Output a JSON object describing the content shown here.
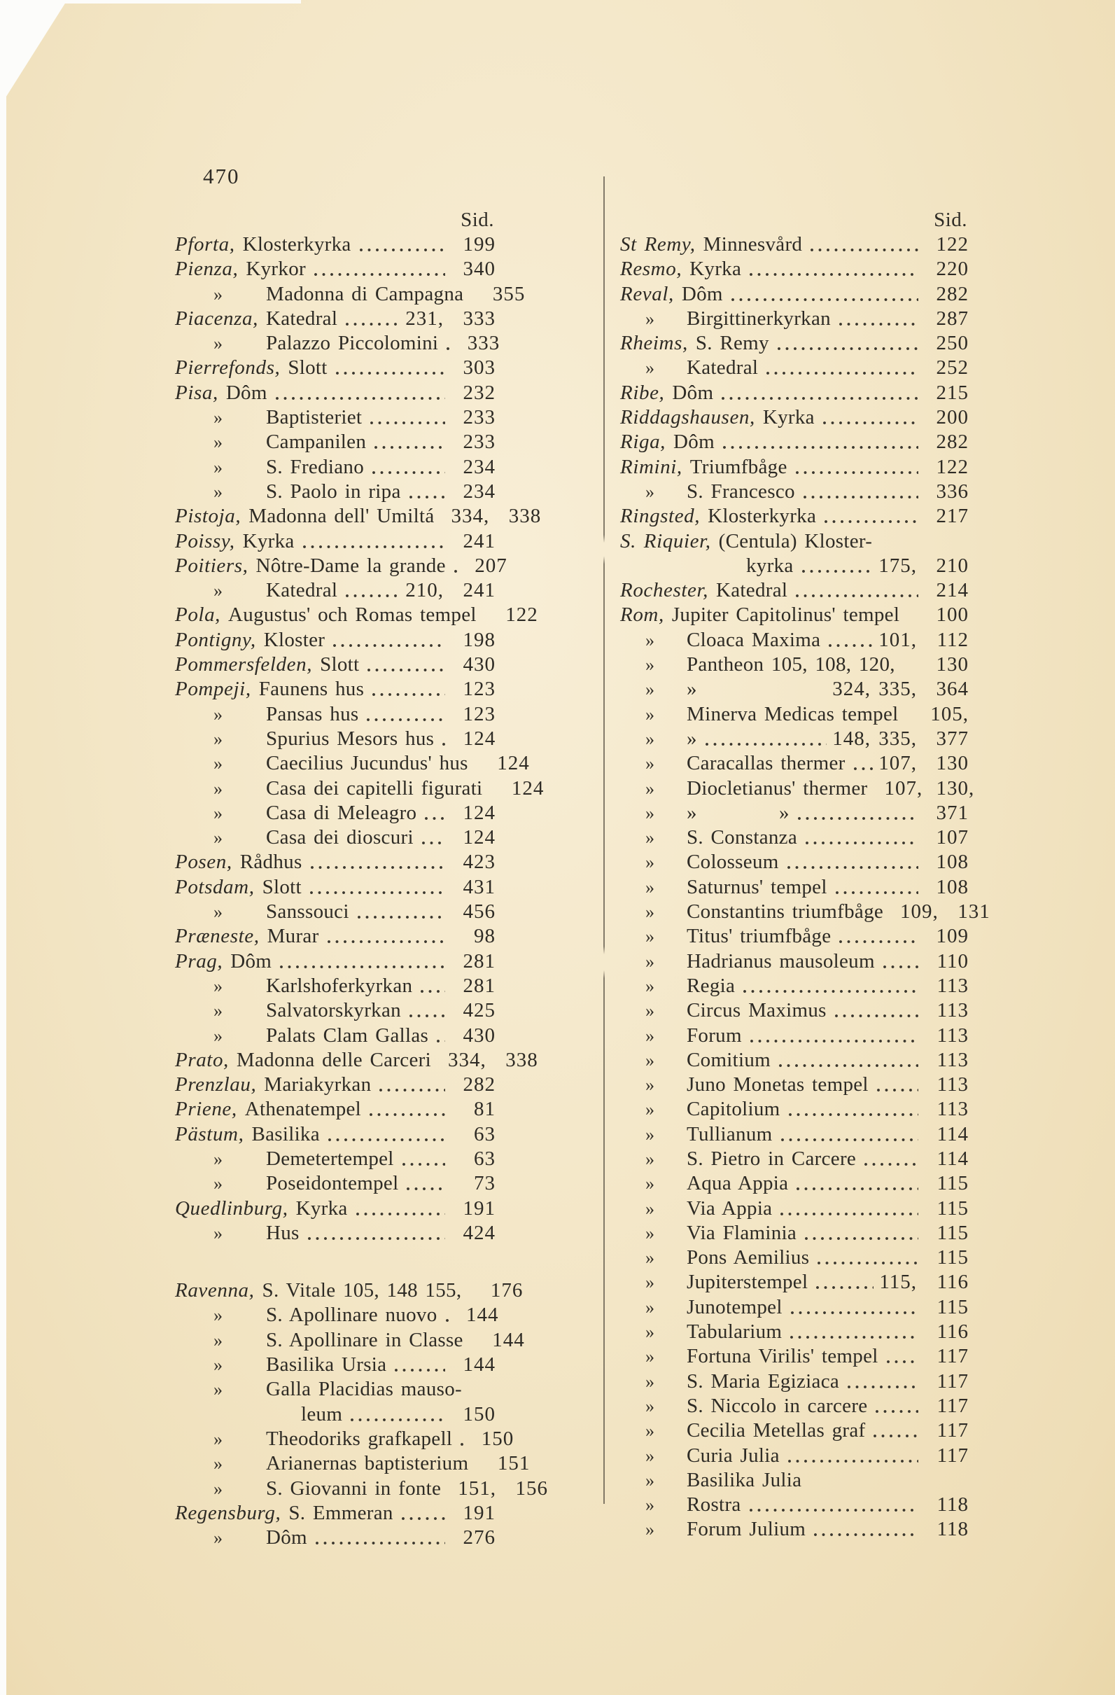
{
  "page": {
    "folio": "470",
    "col_header": "Sid.",
    "colors": {
      "paper": "#f3e6c6",
      "ink": "#2e2b25",
      "scan_backing": "#fcfcfa"
    },
    "left_column": {
      "rows": [
        {
          "h": "Pforta,",
          "t": "Klosterkyrka",
          "d": 1,
          "n": "199"
        },
        {
          "h": "Pienza,",
          "t": "Kyrkor",
          "d": 1,
          "n": "340"
        },
        {
          "m": "»",
          "t": "Madonna di Campagna",
          "i": 1,
          "n": "355"
        },
        {
          "h": "Piacenza,",
          "t": "Katedral",
          "d": 1,
          "pre": "231,",
          "n": "333"
        },
        {
          "m": "»",
          "t": "Palazzo Piccolomini",
          "i": 1,
          "d": 1,
          "n": "333"
        },
        {
          "h": "Pierrefonds,",
          "t": "Slott",
          "d": 1,
          "n": "303"
        },
        {
          "h": "Pisa,",
          "t": "Dôm",
          "d": 1,
          "n": "232"
        },
        {
          "m": "»",
          "t": "Baptisteriet",
          "i": 1,
          "d": 1,
          "n": "233"
        },
        {
          "m": "»",
          "t": "Campanilen",
          "i": 1,
          "d": 1,
          "n": "233"
        },
        {
          "m": "»",
          "t": "S. Frediano",
          "i": 1,
          "d": 1,
          "n": "234"
        },
        {
          "m": "»",
          "t": "S. Paolo in ripa",
          "i": 1,
          "d": 1,
          "n": "234"
        },
        {
          "h": "Pistoja,",
          "t": "Madonna dell' Umiltá",
          "pre": "334,",
          "n": "338"
        },
        {
          "h": "Poissy,",
          "t": "Kyrka",
          "d": 1,
          "n": "241"
        },
        {
          "h": "Poitiers,",
          "t": "Nôtre-Dame la grande",
          "d": 1,
          "n": "207"
        },
        {
          "m": "»",
          "t": "Katedral",
          "i": 1,
          "d": 1,
          "pre": "210,",
          "n": "241"
        },
        {
          "h": "Pola,",
          "t": "Augustus' och Romas tempel",
          "n": "122"
        },
        {
          "h": "Pontigny,",
          "t": "Kloster",
          "d": 1,
          "n": "198"
        },
        {
          "h": "Pommersfelden,",
          "t": "Slott",
          "d": 1,
          "n": "430"
        },
        {
          "h": "Pompeji,",
          "t": "Faunens hus",
          "d": 1,
          "n": "123"
        },
        {
          "m": "»",
          "t": "Pansas hus",
          "i": 1,
          "d": 1,
          "n": "123"
        },
        {
          "m": "»",
          "t": "Spurius Mesors hus",
          "i": 1,
          "d": 1,
          "n": "124"
        },
        {
          "m": "»",
          "t": "Caecilius Jucundus' hus",
          "i": 1,
          "n": "124"
        },
        {
          "m": "»",
          "t": "Casa dei capitelli figurati",
          "i": 1,
          "n": "124"
        },
        {
          "m": "»",
          "t": "Casa di Meleagro",
          "i": 1,
          "d": 1,
          "n": "124"
        },
        {
          "m": "»",
          "t": "Casa dei dioscuri",
          "i": 1,
          "d": 1,
          "n": "124"
        },
        {
          "h": "Posen,",
          "t": "Rådhus",
          "d": 1,
          "n": "423"
        },
        {
          "h": "Potsdam,",
          "t": "Slott",
          "d": 1,
          "n": "431"
        },
        {
          "m": "»",
          "t": "Sanssouci",
          "i": 1,
          "d": 1,
          "n": "456"
        },
        {
          "h": "Præneste,",
          "t": "Murar",
          "d": 1,
          "n": "98"
        },
        {
          "h": "Prag,",
          "t": "Dôm",
          "d": 1,
          "n": "281"
        },
        {
          "m": "»",
          "t": "Karlshoferkyrkan",
          "i": 1,
          "d": 1,
          "n": "281"
        },
        {
          "m": "»",
          "t": "Salvatorskyrkan",
          "i": 1,
          "d": 1,
          "n": "425"
        },
        {
          "m": "»",
          "t": "Palats Clam Gallas",
          "i": 1,
          "d": 1,
          "n": "430"
        },
        {
          "h": "Prato,",
          "t": "Madonna delle Carceri",
          "pre": "334,",
          "n": "338"
        },
        {
          "h": "Prenzlau,",
          "t": "Mariakyrkan",
          "d": 1,
          "n": "282"
        },
        {
          "h": "Priene,",
          "t": "Athenatempel",
          "d": 1,
          "n": "81"
        },
        {
          "h": "Pästum,",
          "t": "Basilika",
          "d": 1,
          "n": "63"
        },
        {
          "m": "»",
          "t": "Demetertempel",
          "i": 1,
          "d": 1,
          "n": "63"
        },
        {
          "m": "»",
          "t": "Poseidontempel",
          "i": 1,
          "d": 1,
          "n": "73"
        },
        {
          "h": "Quedlinburg,",
          "t": "Kyrka",
          "d": 1,
          "n": "191"
        },
        {
          "m": "»",
          "t": "Hus",
          "i": 1,
          "d": 1,
          "n": "424"
        },
        {
          "h": "Ravenna,",
          "t": "S. Vitale 105, 148 155,",
          "n": "176",
          "gap": 1
        },
        {
          "m": "»",
          "t": "S. Apollinare nuovo",
          "i": 1,
          "d": 1,
          "n": "144"
        },
        {
          "m": "»",
          "t": "S. Apollinare in Classe",
          "i": 1,
          "n": "144"
        },
        {
          "m": "»",
          "t": "Basilika Ursia",
          "i": 1,
          "d": 1,
          "n": "144"
        },
        {
          "m": "»",
          "t": "Galla Placidias mauso-",
          "i": 1
        },
        {
          "t": "leum",
          "i": 2,
          "d": 1,
          "n": "150"
        },
        {
          "m": "»",
          "t": "Theodoriks grafkapell",
          "i": 1,
          "d": 1,
          "n": "150"
        },
        {
          "m": "»",
          "t": "Arianernas baptisterium",
          "i": 1,
          "n": "151"
        },
        {
          "m": "»",
          "t": "S. Giovanni in fonte",
          "i": 1,
          "pre": "151,",
          "n": "156"
        },
        {
          "h": "Regensburg,",
          "t": "S. Emmeran",
          "d": 1,
          "n": "191"
        },
        {
          "m": "»",
          "t": "Dôm",
          "i": 1,
          "d": 1,
          "n": "276"
        }
      ]
    },
    "right_column": {
      "rows": [
        {
          "h": "St Remy,",
          "t": "Minnesvård",
          "d": 1,
          "n": "122"
        },
        {
          "h": "Resmo,",
          "t": "Kyrka",
          "d": 1,
          "n": "220"
        },
        {
          "h": "Reval,",
          "t": "Dôm",
          "d": 1,
          "n": "282"
        },
        {
          "m": "»",
          "t": "Birgittinerkyrkan",
          "i": 1,
          "d": 1,
          "n": "287"
        },
        {
          "h": "Rheims,",
          "t": "S. Remy",
          "d": 1,
          "n": "250"
        },
        {
          "m": "»",
          "t": "Katedral",
          "i": 1,
          "d": 1,
          "n": "252"
        },
        {
          "h": "Ribe,",
          "t": "Dôm",
          "d": 1,
          "n": "215"
        },
        {
          "h": "Riddagshausen,",
          "t": "Kyrka",
          "d": 1,
          "n": "200"
        },
        {
          "h": "Riga,",
          "t": "Dôm",
          "d": 1,
          "n": "282"
        },
        {
          "h": "Rimini,",
          "t": "Triumfbåge",
          "d": 1,
          "n": "122"
        },
        {
          "m": "»",
          "t": "S. Francesco",
          "i": 1,
          "d": 1,
          "n": "336"
        },
        {
          "h": "Ringsted,",
          "t": "Klosterkyrka",
          "d": 1,
          "n": "217"
        },
        {
          "h": "S. Riquier,",
          "t": "(Centula) Kloster-"
        },
        {
          "t": "kyrka",
          "i": 2,
          "d": 1,
          "pre": "175,",
          "n": "210"
        },
        {
          "h": "Rochester,",
          "t": "Katedral",
          "d": 1,
          "n": "214"
        },
        {
          "h": "Rom,",
          "t": "Jupiter Capitolinus' tempel",
          "n": "100"
        },
        {
          "m": "»",
          "t": "Cloaca Maxima",
          "i": 1,
          "d": 1,
          "pre": "101,",
          "n": "112"
        },
        {
          "m": "»",
          "t": "Pantheon 105, 108, 120,",
          "i": 1,
          "n": "130"
        },
        {
          "m": "»",
          "t": "»",
          "i": 1,
          "pre": "324, 335,",
          "n": "364"
        },
        {
          "m": "»",
          "t": "Minerva Medicas tempel",
          "i": 1,
          "n": "105,"
        },
        {
          "m": "»",
          "t": "»",
          "i": 1,
          "d": 1,
          "pre": "148, 335,",
          "n": "377"
        },
        {
          "m": "»",
          "t": "Caracallas thermer",
          "i": 1,
          "d": 1,
          "pre": "107,",
          "n": "130"
        },
        {
          "m": "»",
          "t": "Diocletianus' thermer",
          "i": 1,
          "pre": "107,",
          "n": "130,"
        },
        {
          "m": "»",
          "t": "»    »",
          "i": 1,
          "d": 1,
          "n": "371"
        },
        {
          "m": "»",
          "t": "S. Constanza",
          "i": 1,
          "d": 1,
          "n": "107"
        },
        {
          "m": "»",
          "t": "Colosseum",
          "i": 1,
          "d": 1,
          "n": "108"
        },
        {
          "m": "»",
          "t": "Saturnus' tempel",
          "i": 1,
          "d": 1,
          "n": "108"
        },
        {
          "m": "»",
          "t": "Constantins triumfbåge",
          "i": 1,
          "pre": "109,",
          "n": "131"
        },
        {
          "m": "»",
          "t": "Titus' triumfbåge",
          "i": 1,
          "d": 1,
          "n": "109"
        },
        {
          "m": "»",
          "t": "Hadrianus mausoleum",
          "i": 1,
          "d": 1,
          "n": "110"
        },
        {
          "m": "»",
          "t": "Regia",
          "i": 1,
          "d": 1,
          "n": "113"
        },
        {
          "m": "»",
          "t": "Circus Maximus",
          "i": 1,
          "d": 1,
          "n": "113"
        },
        {
          "m": "»",
          "t": "Forum",
          "i": 1,
          "d": 1,
          "n": "113"
        },
        {
          "m": "»",
          "t": "Comitium",
          "i": 1,
          "d": 1,
          "n": "113"
        },
        {
          "m": "»",
          "t": "Juno Monetas tempel",
          "i": 1,
          "d": 1,
          "n": "113"
        },
        {
          "m": "»",
          "t": "Capitolium",
          "i": 1,
          "d": 1,
          "n": "113"
        },
        {
          "m": "»",
          "t": "Tullianum",
          "i": 1,
          "d": 1,
          "n": "114"
        },
        {
          "m": "»",
          "t": "S. Pietro in Carcere",
          "i": 1,
          "d": 1,
          "n": "114"
        },
        {
          "m": "»",
          "t": "Aqua Appia",
          "i": 1,
          "d": 1,
          "n": "115"
        },
        {
          "m": "»",
          "t": "Via Appia",
          "i": 1,
          "d": 1,
          "n": "115"
        },
        {
          "m": "»",
          "t": "Via Flaminia",
          "i": 1,
          "d": 1,
          "n": "115"
        },
        {
          "m": "»",
          "t": "Pons Aemilius",
          "i": 1,
          "d": 1,
          "n": "115"
        },
        {
          "m": "»",
          "t": "Jupiterstempel",
          "i": 1,
          "d": 1,
          "pre": "115,",
          "n": "116"
        },
        {
          "m": "»",
          "t": "Junotempel",
          "i": 1,
          "d": 1,
          "n": "115"
        },
        {
          "m": "»",
          "t": "Tabularium",
          "i": 1,
          "d": 1,
          "n": "116"
        },
        {
          "m": "»",
          "t": "Fortuna Virilis' tempel",
          "i": 1,
          "d": 1,
          "n": "117"
        },
        {
          "m": "»",
          "t": "S. Maria Egiziaca",
          "i": 1,
          "d": 1,
          "n": "117"
        },
        {
          "m": "»",
          "t": "S. Niccolo in carcere",
          "i": 1,
          "d": 1,
          "n": "117"
        },
        {
          "m": "»",
          "t": "Cecilia Metellas graf",
          "i": 1,
          "d": 1,
          "n": "117"
        },
        {
          "m": "»",
          "t": "Curia Julia",
          "i": 1,
          "d": 1,
          "n": "117"
        },
        {
          "m": "»",
          "t": "Basilika Julia",
          "i": 1
        },
        {
          "m": "»",
          "t": "Rostra",
          "i": 1,
          "d": 1,
          "n": "118"
        },
        {
          "m": "»",
          "t": "Forum Julium",
          "i": 1,
          "d": 1,
          "n": "118"
        }
      ]
    }
  }
}
